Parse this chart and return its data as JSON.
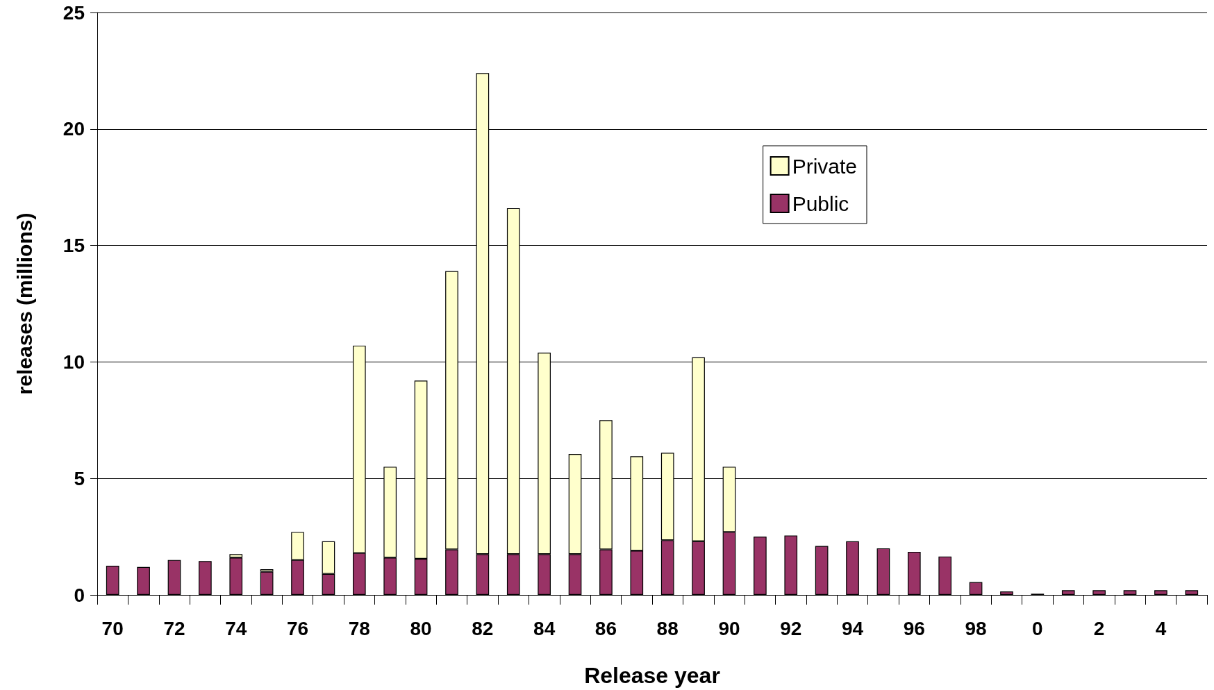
{
  "chart_data": {
    "type": "bar",
    "xlabel": "Release year",
    "ylabel": "releases (millions)",
    "categories": [
      "70",
      null,
      "72",
      null,
      "74",
      null,
      "76",
      null,
      "78",
      null,
      "80",
      null,
      "82",
      null,
      "84",
      null,
      "86",
      null,
      "88",
      null,
      "90",
      null,
      "92",
      null,
      "94",
      null,
      "96",
      null,
      "98",
      null,
      "0",
      null,
      "2",
      null,
      "4",
      null
    ],
    "stacked": true,
    "series": [
      {
        "name": "Public",
        "color": "#993366",
        "values": [
          1.25,
          1.2,
          1.5,
          1.45,
          1.6,
          1.0,
          1.5,
          0.9,
          1.8,
          1.6,
          1.55,
          1.95,
          1.75,
          1.75,
          1.75,
          1.75,
          1.95,
          1.9,
          2.35,
          2.3,
          2.7,
          2.5,
          2.55,
          2.1,
          2.3,
          2.0,
          1.85,
          1.65,
          0.55,
          0.15,
          0.05,
          0.2,
          0.2,
          0.2,
          0.2,
          0.2
        ]
      },
      {
        "name": "Private",
        "color": "#ffffcc",
        "values": [
          null,
          null,
          null,
          null,
          0.15,
          0.1,
          1.2,
          1.4,
          8.9,
          3.9,
          7.65,
          11.95,
          20.65,
          14.85,
          8.65,
          4.3,
          5.55,
          4.05,
          3.75,
          7.9,
          2.8,
          null,
          null,
          null,
          null,
          null,
          null,
          null,
          null,
          null,
          null,
          null,
          null,
          null,
          null,
          null
        ]
      }
    ],
    "ylim": [
      0,
      25
    ],
    "yticks": [
      0,
      5,
      10,
      15,
      20,
      25
    ],
    "grid": "y",
    "legend": "top right"
  }
}
